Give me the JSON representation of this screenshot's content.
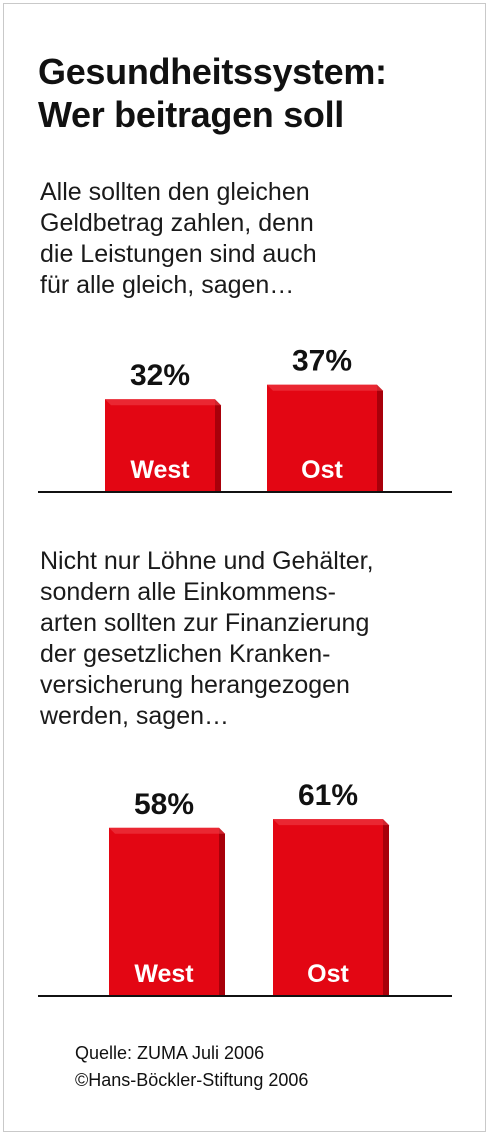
{
  "title_lines": [
    "Gesundheitssystem:",
    "Wer beitragen soll"
  ],
  "colors": {
    "bar": "#e30613",
    "bar_side": "#a8000a",
    "bar_top": "#f0444c",
    "baseline": "#111111"
  },
  "chart_data": [
    {
      "type": "bar",
      "question_lines": [
        "Alle sollten den gleichen",
        "Geldbetrag zahlen, denn",
        "die Leistungen sind auch",
        "für alle gleich, sagen…"
      ],
      "categories": [
        "West",
        "Ost"
      ],
      "values": [
        32,
        37
      ],
      "value_labels": [
        "32%",
        "37%"
      ],
      "unit": "%"
    },
    {
      "type": "bar",
      "question_lines": [
        "Nicht nur Löhne und Gehälter,",
        "sondern alle Einkommens-",
        "arten sollten zur Finanzierung",
        "der gesetzlichen Kranken-",
        "versicherung herangezogen",
        "werden, sagen…"
      ],
      "categories": [
        "West",
        "Ost"
      ],
      "values": [
        58,
        61
      ],
      "value_labels": [
        "58%",
        "61%"
      ],
      "unit": "%"
    }
  ],
  "source_lines": [
    "Quelle: ZUMA Juli 2006",
    "©Hans-Böckler-Stiftung 2006"
  ]
}
